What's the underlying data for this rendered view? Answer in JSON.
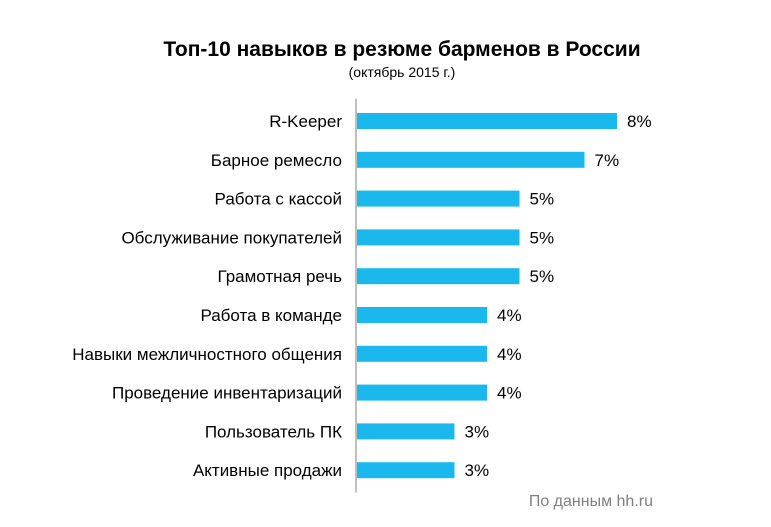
{
  "chart_data": {
    "type": "bar",
    "orientation": "horizontal",
    "title": "Топ-10 навыков в резюме барменов в России",
    "subtitle": "(октябрь 2015 г.)",
    "categories": [
      "R-Keeper",
      "Барное ремесло",
      "Работа с кассой",
      "Обслуживание покупателей",
      "Грамотная речь",
      "Работа в команде",
      "Навыки межличностного общения",
      "Проведение инвентаризаций",
      "Пользователь ПК",
      "Активные продажи"
    ],
    "values": [
      8,
      7,
      5,
      5,
      5,
      4,
      4,
      4,
      3,
      3
    ],
    "value_labels": [
      "8%",
      "7%",
      "5%",
      "5%",
      "5%",
      "4%",
      "4%",
      "4%",
      "3%",
      "3%"
    ],
    "unit": "%",
    "bar_color": "#1ab8ec",
    "xlabel": "",
    "ylabel": "",
    "grid": false,
    "legend": "none"
  },
  "source": "По данным hh.ru"
}
